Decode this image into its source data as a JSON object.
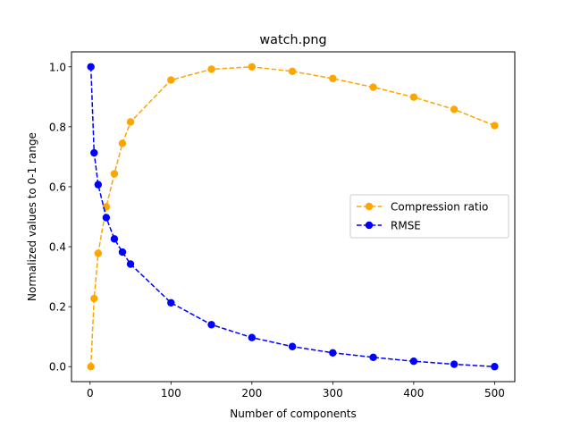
{
  "chart_data": {
    "type": "line",
    "title": "watch.png",
    "xlabel": "Number of components",
    "ylabel": "Normalized values to 0-1 range",
    "xlim": [
      -22.95,
      524.95
    ],
    "ylim": [
      -0.05,
      1.05
    ],
    "xticks": [
      0,
      100,
      200,
      300,
      400,
      500
    ],
    "yticks": [
      0.0,
      0.2,
      0.4,
      0.6,
      0.8,
      1.0
    ],
    "xtick_labels": [
      "0",
      "100",
      "200",
      "300",
      "400",
      "500"
    ],
    "ytick_labels": [
      "0.0",
      "0.2",
      "0.4",
      "0.6",
      "0.8",
      "1.0"
    ],
    "grid": false,
    "legend_position": "center-right",
    "x": [
      1,
      5,
      10,
      20,
      30,
      40,
      50,
      100,
      150,
      200,
      250,
      300,
      350,
      400,
      450,
      500
    ],
    "series": [
      {
        "name": "Compression ratio",
        "color": "#ffa500",
        "line_style": "dashed",
        "marker": "circle",
        "values": [
          0.0,
          0.227,
          0.378,
          0.533,
          0.643,
          0.745,
          0.816,
          0.956,
          0.992,
          1.0,
          0.985,
          0.961,
          0.932,
          0.899,
          0.858,
          0.804
        ]
      },
      {
        "name": "RMSE",
        "color": "#0000ff",
        "line_style": "dashed",
        "marker": "circle",
        "values": [
          1.0,
          0.713,
          0.607,
          0.497,
          0.426,
          0.382,
          0.342,
          0.213,
          0.14,
          0.097,
          0.067,
          0.046,
          0.031,
          0.018,
          0.008,
          0.0
        ]
      }
    ]
  }
}
